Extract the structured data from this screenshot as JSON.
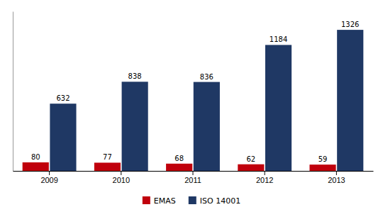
{
  "chart_data": {
    "type": "bar",
    "categories": [
      "2009",
      "2010",
      "2011",
      "2012",
      "2013"
    ],
    "series": [
      {
        "name": "EMAS",
        "color": "#C0000C",
        "values": [
          80,
          77,
          68,
          62,
          59
        ]
      },
      {
        "name": "ISO 14001",
        "color": "#1F3864",
        "values": [
          632,
          838,
          836,
          1184,
          1326
        ]
      }
    ],
    "ylim": [
      0,
      1500
    ],
    "data_labels": true,
    "tick_labels": "x",
    "legend": "bottom",
    "grid": false
  }
}
